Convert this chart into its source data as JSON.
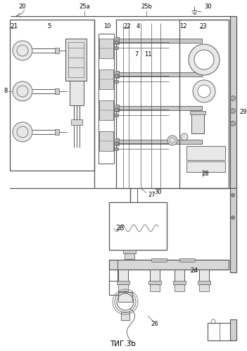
{
  "title": "ΤИГ.3b",
  "bg_color": "#ffffff",
  "line_color": "#555555",
  "figsize": [
    3.51,
    5.0
  ],
  "dpi": 100
}
